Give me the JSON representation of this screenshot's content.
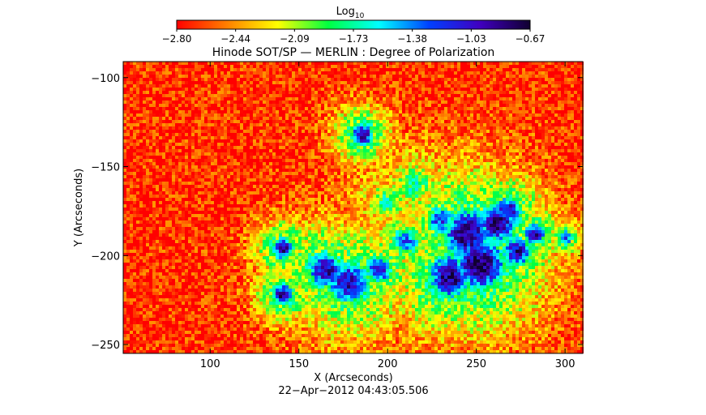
{
  "chart_data": {
    "type": "heatmap",
    "title": "Hinode SOT/SP — MERLIN : Degree of Polarization",
    "subtitle": "22−Apr−2012 04:43:05.506",
    "xlabel": "X (Arcseconds)",
    "ylabel": "Y (Arcseconds)",
    "xlim": [
      51,
      310
    ],
    "ylim": [
      -255,
      -91
    ],
    "x_ticks": [
      100,
      150,
      200,
      250,
      300
    ],
    "y_ticks": [
      -100,
      -150,
      -200,
      -250
    ],
    "colorbar": {
      "label_base": "Log",
      "label_sub": "10",
      "range": [
        -2.8,
        -0.67
      ],
      "ticks": [
        "−2.80",
        "−2.44",
        "−2.09",
        "−1.73",
        "−1.38",
        "−1.03",
        "−0.67"
      ],
      "colors": [
        "#ff0000",
        "#ff8000",
        "#ffff00",
        "#00ff40",
        "#00ffff",
        "#0040ff",
        "#4000c0",
        "#100030"
      ]
    },
    "features": [
      {
        "x": 186,
        "y": -132,
        "r": 6,
        "value": -0.8
      },
      {
        "x": 141,
        "y": -196,
        "r": 6,
        "value": -0.85
      },
      {
        "x": 141,
        "y": -222,
        "r": 6,
        "value": -0.85
      },
      {
        "x": 165,
        "y": -208,
        "r": 10,
        "value": -0.9
      },
      {
        "x": 178,
        "y": -215,
        "r": 12,
        "value": -0.95
      },
      {
        "x": 195,
        "y": -208,
        "r": 8,
        "value": -1.05
      },
      {
        "x": 210,
        "y": -192,
        "r": 8,
        "value": -1.3
      },
      {
        "x": 245,
        "y": -188,
        "r": 14,
        "value": -0.8
      },
      {
        "x": 262,
        "y": -182,
        "r": 10,
        "value": -0.75
      },
      {
        "x": 252,
        "y": -205,
        "r": 14,
        "value": -0.72
      },
      {
        "x": 235,
        "y": -212,
        "r": 12,
        "value": -0.8
      },
      {
        "x": 273,
        "y": -198,
        "r": 8,
        "value": -0.9
      },
      {
        "x": 283,
        "y": -188,
        "r": 6,
        "value": -0.95
      },
      {
        "x": 300,
        "y": -190,
        "r": 4,
        "value": -1.05
      },
      {
        "x": 268,
        "y": -175,
        "r": 8,
        "value": -0.95
      },
      {
        "x": 230,
        "y": -180,
        "r": 8,
        "value": -1.2
      },
      {
        "x": 215,
        "y": -160,
        "r": 10,
        "value": -1.7
      },
      {
        "x": 200,
        "y": -170,
        "r": 10,
        "value": -1.8
      }
    ],
    "background_value": -2.7
  }
}
